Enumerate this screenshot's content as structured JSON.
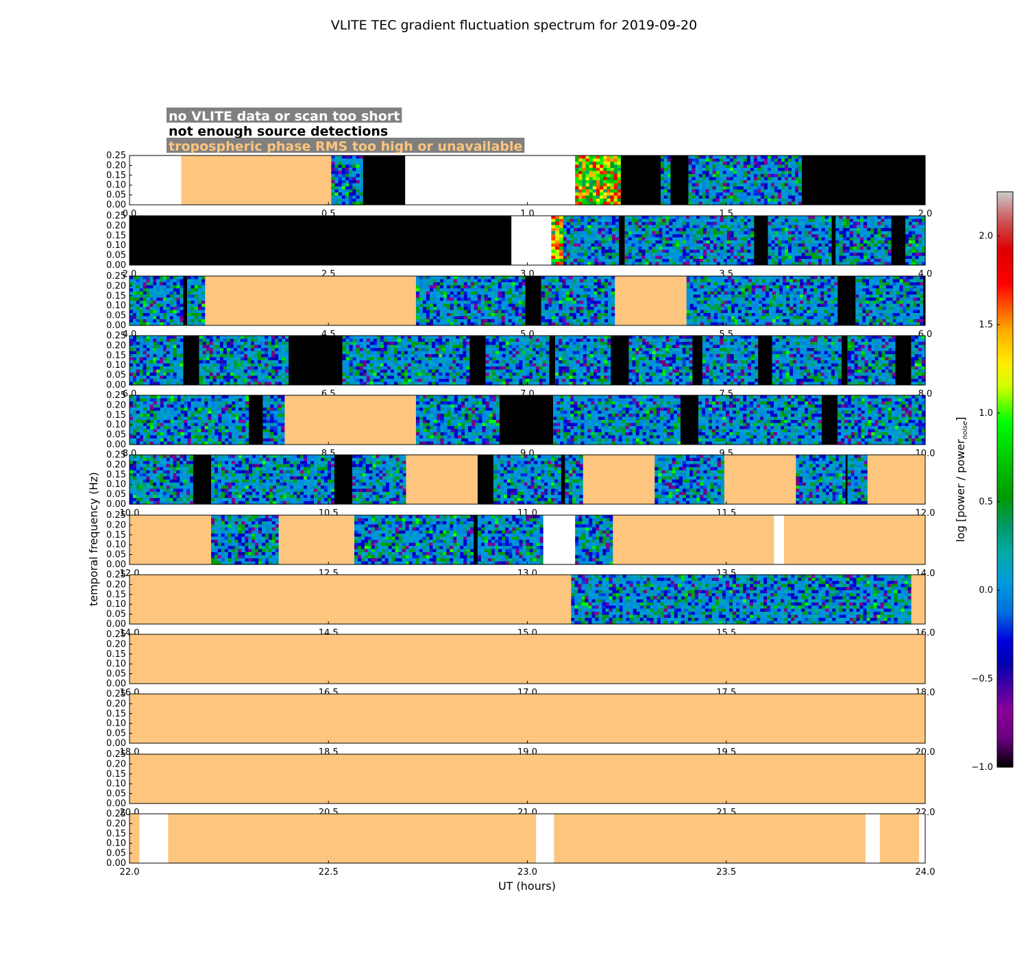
{
  "chart_data": {
    "type": "heatmap",
    "title": "VLITE TEC gradient fluctuation spectrum for 2019-09-20",
    "xlabel": "UT (hours)",
    "ylabel": "temporal frequency (Hz)",
    "colorbar_label": "log [power / power",
    "colorbar_label_subscript": "noise",
    "colorbar_label_close": "]",
    "colorbar_range": [
      -1.0,
      2.25
    ],
    "colorbar_ticks": [
      "2.0",
      "1.5",
      "1.0",
      "0.5",
      "0.0",
      "−0.5",
      "−1.0"
    ],
    "colormap": "nipy_spectral",
    "ylim": [
      0,
      0.25
    ],
    "y_ticks": [
      "0.25",
      "0.20",
      "0.15",
      "0.10",
      "0.05",
      "0.00"
    ],
    "legend": [
      {
        "label": "no VLITE data or scan too short",
        "text_color": "#ffffff",
        "box_color": "#808080"
      },
      {
        "label": "not enough source detections",
        "text_color": "#000000",
        "box_color": "#ffffff"
      },
      {
        "label": "tropospheric phase RMS too high or unavailable",
        "text_color": "#fdc57e",
        "box_color": "#808080"
      }
    ],
    "status_colors": {
      "nodata": "#ffffff",
      "nodetect": "#000000",
      "rms": "#fdc57e"
    },
    "panels": [
      {
        "xlim": [
          0,
          2
        ],
        "x_ticks": [
          "0.0",
          "0.5",
          "1.0",
          "1.5",
          "2.0"
        ],
        "segments": [
          {
            "start": 0.0,
            "end": 0.13,
            "state": "nodata"
          },
          {
            "start": 0.13,
            "end": 0.507,
            "state": "rms"
          },
          {
            "start": 0.507,
            "end": 0.587,
            "state": "data"
          },
          {
            "start": 0.587,
            "end": 0.693,
            "state": "nodetect"
          },
          {
            "start": 0.693,
            "end": 1.12,
            "state": "nodata"
          },
          {
            "start": 1.12,
            "end": 1.235,
            "state": "data",
            "level": "high"
          },
          {
            "start": 1.235,
            "end": 1.335,
            "state": "nodetect"
          },
          {
            "start": 1.335,
            "end": 1.36,
            "state": "data"
          },
          {
            "start": 1.36,
            "end": 1.405,
            "state": "nodetect"
          },
          {
            "start": 1.405,
            "end": 1.69,
            "state": "data"
          },
          {
            "start": 1.69,
            "end": 2.0,
            "state": "nodetect"
          }
        ]
      },
      {
        "xlim": [
          2,
          4
        ],
        "x_ticks": [
          "2.0",
          "2.5",
          "3.0",
          "3.5",
          "4.0"
        ],
        "segments": [
          {
            "start": 2.0,
            "end": 2.96,
            "state": "nodetect"
          },
          {
            "start": 2.96,
            "end": 3.06,
            "state": "nodata"
          },
          {
            "start": 3.06,
            "end": 3.09,
            "state": "data",
            "level": "high"
          },
          {
            "start": 3.09,
            "end": 3.23,
            "state": "data"
          },
          {
            "start": 3.23,
            "end": 3.245,
            "state": "nodetect"
          },
          {
            "start": 3.245,
            "end": 3.57,
            "state": "data"
          },
          {
            "start": 3.57,
            "end": 3.605,
            "state": "nodetect"
          },
          {
            "start": 3.605,
            "end": 3.765,
            "state": "data"
          },
          {
            "start": 3.765,
            "end": 3.775,
            "state": "nodetect"
          },
          {
            "start": 3.775,
            "end": 3.915,
            "state": "data"
          },
          {
            "start": 3.915,
            "end": 3.95,
            "state": "nodetect"
          },
          {
            "start": 3.95,
            "end": 4.0,
            "state": "data"
          }
        ]
      },
      {
        "xlim": [
          4,
          6
        ],
        "x_ticks": [
          "4.0",
          "4.5",
          "5.0",
          "5.5",
          "6.0"
        ],
        "segments": [
          {
            "start": 4.0,
            "end": 4.135,
            "state": "data"
          },
          {
            "start": 4.135,
            "end": 4.145,
            "state": "nodetect"
          },
          {
            "start": 4.145,
            "end": 4.19,
            "state": "data"
          },
          {
            "start": 4.19,
            "end": 4.72,
            "state": "rms"
          },
          {
            "start": 4.72,
            "end": 4.995,
            "state": "data"
          },
          {
            "start": 4.995,
            "end": 5.035,
            "state": "nodetect"
          },
          {
            "start": 5.035,
            "end": 5.22,
            "state": "data"
          },
          {
            "start": 5.22,
            "end": 5.4,
            "state": "rms"
          },
          {
            "start": 5.4,
            "end": 5.78,
            "state": "data"
          },
          {
            "start": 5.78,
            "end": 5.825,
            "state": "nodetect"
          },
          {
            "start": 5.825,
            "end": 5.995,
            "state": "data"
          },
          {
            "start": 5.995,
            "end": 6.0,
            "state": "nodetect"
          }
        ]
      },
      {
        "xlim": [
          6,
          8
        ],
        "x_ticks": [
          "6.0",
          "6.5",
          "7.0",
          "7.5",
          "8.0"
        ],
        "segments": [
          {
            "start": 6.0,
            "end": 6.135,
            "state": "data"
          },
          {
            "start": 6.135,
            "end": 6.175,
            "state": "nodetect"
          },
          {
            "start": 6.175,
            "end": 6.4,
            "state": "data"
          },
          {
            "start": 6.4,
            "end": 6.535,
            "state": "nodetect"
          },
          {
            "start": 6.535,
            "end": 6.855,
            "state": "data"
          },
          {
            "start": 6.855,
            "end": 6.895,
            "state": "nodetect"
          },
          {
            "start": 6.895,
            "end": 7.055,
            "state": "data"
          },
          {
            "start": 7.055,
            "end": 7.07,
            "state": "nodetect"
          },
          {
            "start": 7.07,
            "end": 7.21,
            "state": "data"
          },
          {
            "start": 7.21,
            "end": 7.255,
            "state": "nodetect"
          },
          {
            "start": 7.255,
            "end": 7.415,
            "state": "data"
          },
          {
            "start": 7.415,
            "end": 7.44,
            "state": "nodetect"
          },
          {
            "start": 7.44,
            "end": 7.58,
            "state": "data"
          },
          {
            "start": 7.58,
            "end": 7.615,
            "state": "nodetect"
          },
          {
            "start": 7.615,
            "end": 7.79,
            "state": "data"
          },
          {
            "start": 7.79,
            "end": 7.805,
            "state": "nodetect"
          },
          {
            "start": 7.805,
            "end": 7.925,
            "state": "data"
          },
          {
            "start": 7.925,
            "end": 7.965,
            "state": "nodetect"
          },
          {
            "start": 7.965,
            "end": 8.0,
            "state": "data"
          }
        ]
      },
      {
        "xlim": [
          8,
          10
        ],
        "x_ticks": [
          "8.0",
          "8.5",
          "9.0",
          "9.5",
          "10.0"
        ],
        "segments": [
          {
            "start": 8.0,
            "end": 8.3,
            "state": "data"
          },
          {
            "start": 8.3,
            "end": 8.335,
            "state": "nodetect"
          },
          {
            "start": 8.335,
            "end": 8.39,
            "state": "data"
          },
          {
            "start": 8.39,
            "end": 8.72,
            "state": "rms"
          },
          {
            "start": 8.72,
            "end": 8.93,
            "state": "data"
          },
          {
            "start": 8.93,
            "end": 9.065,
            "state": "nodetect"
          },
          {
            "start": 9.065,
            "end": 9.385,
            "state": "data"
          },
          {
            "start": 9.385,
            "end": 9.43,
            "state": "nodetect"
          },
          {
            "start": 9.43,
            "end": 9.74,
            "state": "data"
          },
          {
            "start": 9.74,
            "end": 9.78,
            "state": "nodetect"
          },
          {
            "start": 9.78,
            "end": 10.0,
            "state": "data"
          }
        ]
      },
      {
        "xlim": [
          10,
          12
        ],
        "x_ticks": [
          "10.0",
          "10.5",
          "11.0",
          "11.5",
          "12.0"
        ],
        "segments": [
          {
            "start": 10.0,
            "end": 10.16,
            "state": "data"
          },
          {
            "start": 10.16,
            "end": 10.205,
            "state": "nodetect"
          },
          {
            "start": 10.205,
            "end": 10.515,
            "state": "data"
          },
          {
            "start": 10.515,
            "end": 10.56,
            "state": "nodetect"
          },
          {
            "start": 10.56,
            "end": 10.695,
            "state": "data"
          },
          {
            "start": 10.695,
            "end": 10.875,
            "state": "rms"
          },
          {
            "start": 10.875,
            "end": 10.915,
            "state": "nodetect"
          },
          {
            "start": 10.915,
            "end": 11.085,
            "state": "data"
          },
          {
            "start": 11.085,
            "end": 11.095,
            "state": "nodetect"
          },
          {
            "start": 11.095,
            "end": 11.14,
            "state": "data"
          },
          {
            "start": 11.14,
            "end": 11.32,
            "state": "rms"
          },
          {
            "start": 11.32,
            "end": 11.495,
            "state": "data"
          },
          {
            "start": 11.495,
            "end": 11.675,
            "state": "rms"
          },
          {
            "start": 11.675,
            "end": 11.8,
            "state": "data"
          },
          {
            "start": 11.8,
            "end": 11.805,
            "state": "nodetect"
          },
          {
            "start": 11.805,
            "end": 11.855,
            "state": "data"
          },
          {
            "start": 11.855,
            "end": 12.0,
            "state": "rms"
          }
        ]
      },
      {
        "xlim": [
          12,
          14
        ],
        "x_ticks": [
          "12.0",
          "12.5",
          "13.0",
          "13.5",
          "14.0"
        ],
        "segments": [
          {
            "start": 12.0,
            "end": 12.205,
            "state": "rms"
          },
          {
            "start": 12.205,
            "end": 12.375,
            "state": "data"
          },
          {
            "start": 12.375,
            "end": 12.565,
            "state": "rms"
          },
          {
            "start": 12.565,
            "end": 12.865,
            "state": "data"
          },
          {
            "start": 12.865,
            "end": 12.875,
            "state": "nodetect"
          },
          {
            "start": 12.875,
            "end": 13.04,
            "state": "data"
          },
          {
            "start": 13.04,
            "end": 13.12,
            "state": "nodata"
          },
          {
            "start": 13.12,
            "end": 13.215,
            "state": "data"
          },
          {
            "start": 13.215,
            "end": 13.62,
            "state": "rms"
          },
          {
            "start": 13.62,
            "end": 13.645,
            "state": "nodata"
          },
          {
            "start": 13.645,
            "end": 14.0,
            "state": "rms"
          }
        ]
      },
      {
        "xlim": [
          14,
          16
        ],
        "x_ticks": [
          "14.0",
          "14.5",
          "15.0",
          "15.5",
          "16.0"
        ],
        "segments": [
          {
            "start": 14.0,
            "end": 15.11,
            "state": "rms"
          },
          {
            "start": 15.11,
            "end": 15.965,
            "state": "data"
          },
          {
            "start": 15.965,
            "end": 16.0,
            "state": "rms"
          }
        ]
      },
      {
        "xlim": [
          16,
          18
        ],
        "x_ticks": [
          "16.0",
          "16.5",
          "17.0",
          "17.5",
          "18.0"
        ],
        "segments": [
          {
            "start": 16.0,
            "end": 18.0,
            "state": "rms"
          }
        ]
      },
      {
        "xlim": [
          18,
          20
        ],
        "x_ticks": [
          "18.0",
          "18.5",
          "19.0",
          "19.5",
          "20.0"
        ],
        "segments": [
          {
            "start": 18.0,
            "end": 20.0,
            "state": "rms"
          }
        ]
      },
      {
        "xlim": [
          20,
          22
        ],
        "x_ticks": [
          "20.0",
          "20.5",
          "21.0",
          "21.5",
          "22.0"
        ],
        "segments": [
          {
            "start": 20.0,
            "end": 22.0,
            "state": "rms"
          }
        ]
      },
      {
        "xlim": [
          22,
          24
        ],
        "x_ticks": [
          "22.0",
          "22.5",
          "23.0",
          "23.5",
          "24.0"
        ],
        "segments": [
          {
            "start": 22.0,
            "end": 22.025,
            "state": "rms"
          },
          {
            "start": 22.025,
            "end": 22.097,
            "state": "nodata"
          },
          {
            "start": 22.097,
            "end": 23.022,
            "state": "rms"
          },
          {
            "start": 23.022,
            "end": 23.067,
            "state": "nodata"
          },
          {
            "start": 23.067,
            "end": 23.85,
            "state": "rms"
          },
          {
            "start": 23.85,
            "end": 23.886,
            "state": "nodata"
          },
          {
            "start": 23.886,
            "end": 23.985,
            "state": "rms"
          },
          {
            "start": 23.985,
            "end": 24.0,
            "state": "nodata"
          }
        ]
      }
    ]
  }
}
